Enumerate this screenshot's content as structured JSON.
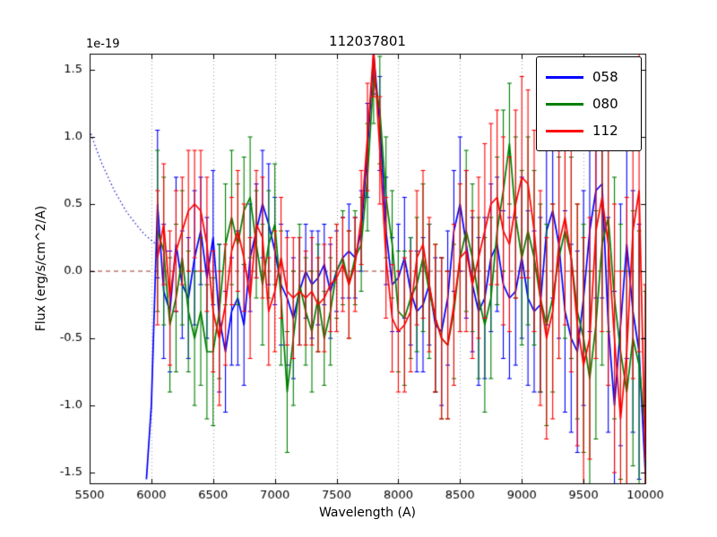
{
  "chart_data": {
    "type": "line",
    "title": "112037801",
    "xlabel": "Wavelength (A)",
    "ylabel": "Flux (erg/s/cm^2/A)",
    "y_offset_factor": "1e-19",
    "xlim": [
      5500,
      10000
    ],
    "ylim": [
      -1.58,
      1.62
    ],
    "xticks": [
      5500,
      6000,
      6500,
      7000,
      7500,
      8000,
      8500,
      9000,
      9500,
      10000
    ],
    "yticks": [
      -1.5,
      -1.0,
      -0.5,
      0.0,
      0.5,
      1.0,
      1.5
    ],
    "ytick_labels": [
      "-1.5",
      "-1.0",
      "-0.5",
      "0.0",
      "0.5",
      "1.0",
      "1.5"
    ],
    "grid": "vertical dotted gridlines at x ticks",
    "grid_color": "#9a9a9a",
    "legend": {
      "position": "upper right",
      "entries": [
        "058",
        "080",
        "112"
      ]
    },
    "zero_line": {
      "y": 0,
      "style": "dashed",
      "color": "#993322"
    },
    "guide_curve": {
      "style": "dotted",
      "color": "#2222cc",
      "points": [
        [
          5500,
          1.05
        ],
        [
          5550,
          0.92
        ],
        [
          5600,
          0.8
        ],
        [
          5650,
          0.7
        ],
        [
          5700,
          0.6
        ],
        [
          5750,
          0.52
        ],
        [
          5800,
          0.44
        ],
        [
          5850,
          0.38
        ],
        [
          5900,
          0.32
        ],
        [
          5950,
          0.27
        ],
        [
          6000,
          0.23
        ],
        [
          6050,
          0.19
        ],
        [
          6100,
          0.16
        ],
        [
          6150,
          0.14
        ]
      ]
    },
    "wavelengths": [
      6050,
      6100,
      6150,
      6200,
      6250,
      6300,
      6350,
      6400,
      6450,
      6500,
      6550,
      6600,
      6650,
      6700,
      6750,
      6800,
      6850,
      6900,
      6950,
      7000,
      7050,
      7100,
      7150,
      7200,
      7250,
      7300,
      7350,
      7400,
      7450,
      7500,
      7550,
      7600,
      7650,
      7700,
      7750,
      7800,
      7850,
      7900,
      7950,
      8000,
      8050,
      8100,
      8150,
      8200,
      8250,
      8300,
      8350,
      8400,
      8450,
      8500,
      8550,
      8600,
      8650,
      8700,
      8750,
      8800,
      8850,
      8900,
      8950,
      9000,
      9050,
      9100,
      9150,
      9200,
      9250,
      9300,
      9350,
      9400,
      9450,
      9500,
      9550,
      9600,
      9650,
      9700,
      9750,
      9800,
      9850,
      9900,
      9950,
      10000
    ],
    "series": [
      {
        "name": "058",
        "color": "#0000ff",
        "pre_points": [
          [
            5960,
            -1.55
          ],
          [
            6000,
            -1.0
          ]
        ],
        "flux": [
          0.5,
          -0.15,
          -0.3,
          0.2,
          -0.1,
          -0.2,
          0.1,
          0.3,
          -0.05,
          0.25,
          -0.35,
          -0.6,
          -0.3,
          -0.2,
          -0.4,
          0.1,
          0.3,
          0.5,
          0.35,
          0.15,
          -0.1,
          -0.2,
          -0.35,
          -0.15,
          0.0,
          -0.1,
          -0.05,
          0.05,
          -0.15,
          0.0,
          0.1,
          0.15,
          0.1,
          0.3,
          0.9,
          1.62,
          1.1,
          0.3,
          -0.1,
          -0.05,
          0.1,
          -0.15,
          -0.3,
          -0.25,
          -0.1,
          -0.4,
          -0.45,
          -0.2,
          0.3,
          0.5,
          0.2,
          -0.1,
          -0.3,
          -0.2,
          0.1,
          0.2,
          -0.1,
          -0.2,
          -0.15,
          0.1,
          -0.2,
          -0.3,
          -0.25,
          0.3,
          0.45,
          0.2,
          -0.3,
          -0.5,
          -0.6,
          -0.2,
          0.3,
          0.6,
          0.65,
          -0.4,
          -1.0,
          -0.4,
          0.2,
          -0.3,
          -0.6,
          -1.5
        ],
        "err": [
          0.55,
          0.5,
          0.45,
          0.5,
          0.4,
          0.45,
          0.5,
          0.4,
          0.45,
          0.5,
          0.55,
          0.45,
          0.4,
          0.5,
          0.45,
          0.4,
          0.35,
          0.4,
          0.45,
          0.4,
          0.45,
          0.5,
          0.45,
          0.4,
          0.35,
          0.4,
          0.35,
          0.3,
          0.35,
          0.3,
          0.3,
          0.35,
          0.3,
          0.3,
          0.35,
          0.3,
          0.35,
          0.4,
          0.35,
          0.4,
          0.45,
          0.4,
          0.45,
          0.5,
          0.45,
          0.5,
          0.55,
          0.5,
          0.45,
          0.5,
          0.55,
          0.5,
          0.55,
          0.6,
          0.55,
          0.5,
          0.55,
          0.6,
          0.55,
          0.6,
          0.65,
          0.6,
          0.65,
          0.7,
          0.65,
          0.7,
          0.75,
          0.7,
          0.75,
          0.8,
          0.75,
          0.8,
          0.85,
          0.8,
          0.85,
          0.9,
          0.85,
          0.9,
          0.95,
          1.0
        ]
      },
      {
        "name": "080",
        "color": "#007f00",
        "flux": [
          0.3,
          0.15,
          -0.4,
          -0.2,
          0.1,
          -0.3,
          -0.5,
          -0.3,
          -0.6,
          -0.6,
          -0.3,
          0.2,
          0.4,
          0.2,
          0.45,
          0.55,
          0.2,
          -0.1,
          0.2,
          0.35,
          -0.2,
          -0.9,
          -0.5,
          -0.1,
          -0.3,
          -0.45,
          -0.2,
          -0.5,
          -0.3,
          0.0,
          0.1,
          -0.1,
          0.1,
          0.2,
          0.7,
          1.45,
          1.2,
          0.55,
          0.2,
          -0.3,
          -0.35,
          -0.2,
          -0.1,
          0.1,
          -0.15,
          -0.35,
          -0.5,
          -0.55,
          -0.3,
          0.1,
          0.3,
          0.1,
          -0.2,
          -0.4,
          -0.2,
          0.3,
          0.6,
          0.95,
          0.4,
          0.1,
          0.3,
          0.1,
          -0.2,
          -0.4,
          -0.2,
          0.1,
          0.3,
          0.1,
          -0.3,
          -0.5,
          -0.8,
          -0.4,
          0.2,
          0.4,
          -0.2,
          -0.6,
          -0.9,
          -0.5,
          -0.7,
          -1.2
        ],
        "err": [
          0.6,
          0.55,
          0.5,
          0.55,
          0.5,
          0.45,
          0.5,
          0.55,
          0.5,
          0.55,
          0.5,
          0.45,
          0.5,
          0.45,
          0.4,
          0.45,
          0.4,
          0.45,
          0.4,
          0.45,
          0.5,
          0.45,
          0.5,
          0.45,
          0.4,
          0.45,
          0.4,
          0.35,
          0.4,
          0.35,
          0.35,
          0.4,
          0.35,
          0.35,
          0.4,
          0.35,
          0.4,
          0.45,
          0.4,
          0.45,
          0.5,
          0.45,
          0.5,
          0.55,
          0.5,
          0.55,
          0.6,
          0.55,
          0.5,
          0.55,
          0.6,
          0.55,
          0.6,
          0.65,
          0.6,
          0.55,
          0.6,
          0.45,
          0.6,
          0.65,
          0.7,
          0.65,
          0.7,
          0.75,
          0.7,
          0.75,
          0.8,
          0.75,
          0.8,
          0.85,
          0.8,
          0.85,
          0.9,
          0.85,
          0.9,
          0.95,
          0.9,
          0.95,
          1.0,
          1.05
        ]
      },
      {
        "name": "112",
        "color": "#ff0000",
        "flux": [
          0.1,
          0.35,
          -0.2,
          0.15,
          0.3,
          0.45,
          0.5,
          0.45,
          0.2,
          -0.3,
          -0.5,
          -0.25,
          0.15,
          0.3,
          0.1,
          -0.2,
          0.35,
          0.25,
          -0.3,
          -0.15,
          0.1,
          -0.15,
          -0.2,
          -0.15,
          -0.2,
          -0.15,
          -0.25,
          -0.2,
          -0.1,
          -0.05,
          0.05,
          -0.1,
          0.05,
          0.4,
          1.0,
          1.65,
          0.9,
          0.1,
          -0.35,
          -0.45,
          -0.4,
          -0.3,
          0.1,
          0.2,
          -0.1,
          -0.35,
          -0.5,
          -0.55,
          -0.25,
          0.1,
          0.15,
          -0.1,
          0.1,
          0.3,
          0.5,
          0.55,
          0.3,
          0.2,
          0.5,
          0.7,
          0.65,
          0.3,
          -0.2,
          -0.5,
          -0.3,
          0.2,
          0.4,
          0.1,
          -0.4,
          -0.7,
          -0.5,
          0.3,
          0.55,
          0.2,
          -0.5,
          -1.1,
          -0.6,
          0.3,
          0.6,
          -1.4
        ],
        "err": [
          0.5,
          0.45,
          0.5,
          0.45,
          0.4,
          0.45,
          0.4,
          0.45,
          0.5,
          0.45,
          0.5,
          0.45,
          0.4,
          0.45,
          0.4,
          0.45,
          0.4,
          0.45,
          0.4,
          0.45,
          0.45,
          0.4,
          0.45,
          0.4,
          0.35,
          0.4,
          0.35,
          0.4,
          0.35,
          0.4,
          0.35,
          0.4,
          0.35,
          0.35,
          0.4,
          0.35,
          0.4,
          0.45,
          0.4,
          0.45,
          0.5,
          0.45,
          0.5,
          0.55,
          0.5,
          0.55,
          0.6,
          0.55,
          0.6,
          0.55,
          0.6,
          0.55,
          0.6,
          0.65,
          0.6,
          0.65,
          0.7,
          0.65,
          0.7,
          0.75,
          0.7,
          0.75,
          0.8,
          0.75,
          0.8,
          0.85,
          0.8,
          0.85,
          0.9,
          0.95,
          0.9,
          0.95,
          1.0,
          1.05,
          1.0,
          1.1,
          1.15,
          1.1,
          1.2,
          1.3
        ]
      }
    ]
  }
}
